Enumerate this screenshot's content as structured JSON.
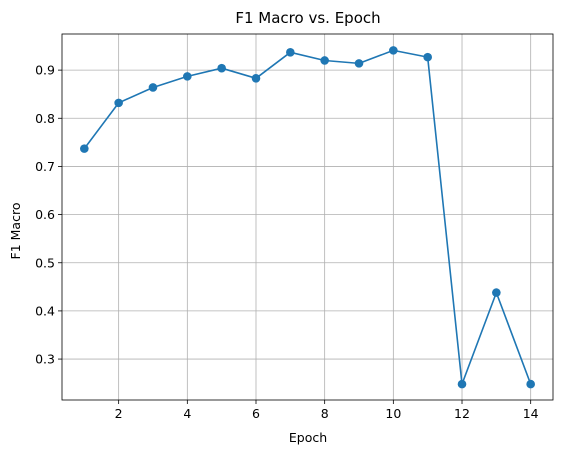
{
  "chart_data": {
    "type": "line",
    "title": "F1 Macro vs. Epoch",
    "xlabel": "Epoch",
    "ylabel": "F1 Macro",
    "x": [
      1,
      2,
      3,
      4,
      5,
      6,
      7,
      8,
      9,
      10,
      11,
      12,
      13,
      14
    ],
    "series": [
      {
        "values": [
          0.737,
          0.832,
          0.864,
          0.887,
          0.904,
          0.883,
          0.937,
          0.92,
          0.914,
          0.941,
          0.927,
          0.248,
          0.438,
          0.248
        ]
      }
    ],
    "xlim": [
      0.35,
      14.65
    ],
    "ylim": [
      0.215,
      0.975
    ],
    "xticks": [
      2,
      4,
      6,
      8,
      10,
      12,
      14
    ],
    "xtick_labels": [
      "2",
      "4",
      "6",
      "8",
      "10",
      "12",
      "14"
    ],
    "yticks": [
      0.3,
      0.4,
      0.5,
      0.6,
      0.7,
      0.8,
      0.9
    ],
    "ytick_labels": [
      "0.3",
      "0.4",
      "0.5",
      "0.6",
      "0.7",
      "0.8",
      "0.9"
    ],
    "grid": true,
    "line_color": "#1f77b4",
    "grid_color": "#b0b0b0"
  }
}
